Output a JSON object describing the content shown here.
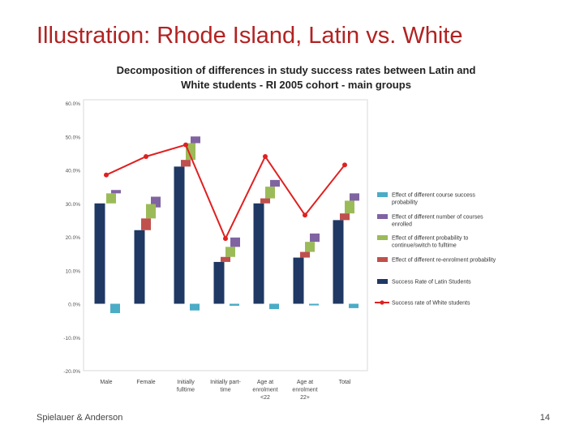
{
  "slide": {
    "title": "Illustration: Rhode Island, Latin vs. White",
    "footer_left": "Spielauer & Anderson",
    "page_number": "14"
  },
  "chart_data": {
    "type": "bar",
    "title_line1": "Decomposition of differences in study success rates between Latin and",
    "title_line2": "White students - RI 2005 cohort - main groups",
    "categories": [
      [
        "Male"
      ],
      [
        "Female"
      ],
      [
        "Initially",
        "fulltime"
      ],
      [
        "Initially part-",
        "time"
      ],
      [
        "Age at",
        "enrolment",
        "<22"
      ],
      [
        "Age at",
        "enrolment",
        "22+"
      ],
      [
        "Total"
      ]
    ],
    "ylim": [
      -20,
      60
    ],
    "yticks": [
      "60.0%",
      "50.0%",
      "40.0%",
      "30.0%",
      "20.0%",
      "10.0%",
      "0.0%",
      "-10.0%",
      "-20.0%"
    ],
    "grid": false,
    "legend_position": "right",
    "series": [
      {
        "name": "Effect of different course success probability",
        "color": "#4bacc6",
        "kind": "offset-bar",
        "values": [
          -2.8,
          0,
          -2.0,
          -0.6,
          -1.6,
          -0.5,
          -1.3
        ]
      },
      {
        "name": "Effect of different number of courses enrolled",
        "color": "#8064a2",
        "kind": "floating",
        "values": [
          [
            33.0,
            34.0
          ],
          [
            28.8,
            32.0
          ],
          [
            48.0,
            50.0
          ],
          [
            17.0,
            19.8
          ],
          [
            35.0,
            37.0
          ],
          [
            18.5,
            21.0
          ],
          [
            30.8,
            33.0
          ]
        ]
      },
      {
        "name": "Effect of different probability to continue/switch to fulltime",
        "color": "#9bbb59",
        "kind": "floating",
        "values": [
          [
            30.0,
            33.0
          ],
          [
            25.5,
            29.8
          ],
          [
            43.0,
            48.0
          ],
          [
            14.0,
            17.0
          ],
          [
            31.5,
            35.0
          ],
          [
            15.5,
            18.5
          ],
          [
            27.0,
            30.8
          ]
        ]
      },
      {
        "name": "Effect of different re-enrolment probability",
        "color": "#c0504d",
        "kind": "floating",
        "values": [
          null,
          [
            22.0,
            25.5
          ],
          [
            41.0,
            43.0
          ],
          [
            12.5,
            14.0
          ],
          [
            30.0,
            31.5
          ],
          [
            13.8,
            15.5
          ],
          [
            25.0,
            27.0
          ]
        ]
      },
      {
        "name": "Success Rate of Latin Students",
        "color": "#1f3864",
        "kind": "bar",
        "values": [
          30.0,
          22.0,
          41.0,
          12.5,
          30.0,
          13.8,
          25.0
        ]
      },
      {
        "name": "Success rate of White students",
        "color": "#e02020",
        "kind": "line",
        "values": [
          38.5,
          44.0,
          47.5,
          19.5,
          44.0,
          26.5,
          41.5
        ]
      }
    ]
  }
}
